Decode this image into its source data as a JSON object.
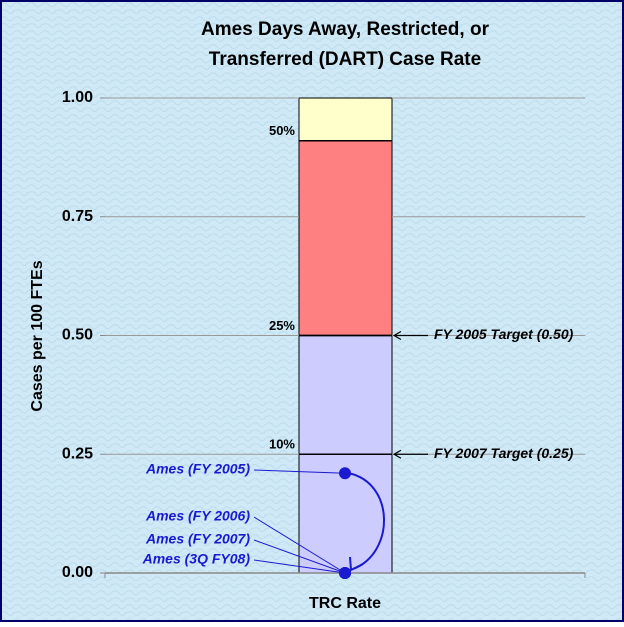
{
  "chart_data": {
    "type": "stacked-bar",
    "title": [
      "Ames Days Away, Restricted, or",
      "Transferred (DART) Case Rate"
    ],
    "ylabel": "Cases per 100 FTEs",
    "xlabel": "TRC Rate",
    "ylim": [
      0,
      1
    ],
    "yticks": [
      {
        "value": 0,
        "label": "0.00"
      },
      {
        "value": 0.25,
        "label": "0.25"
      },
      {
        "value": 0.5,
        "label": "0.50"
      },
      {
        "value": 0.75,
        "label": "0.75"
      },
      {
        "value": 1,
        "label": "1.00"
      }
    ],
    "grid": true,
    "segments": [
      {
        "color": "#ccccff",
        "value": 0.5
      },
      {
        "color": "#ff8080",
        "value": 0.41
      },
      {
        "color": "#ffffcc",
        "value": 0.09
      }
    ],
    "percentile_labels": [
      {
        "text": "10%",
        "y": 0.25
      },
      {
        "text": "25%",
        "y": 0.5
      },
      {
        "text": "50%",
        "y": 0.91
      }
    ],
    "targets": [
      {
        "text": "FY 2005 Target (0.50)",
        "y": 0.5
      },
      {
        "text": "FY 2007 Target (0.25)",
        "y": 0.25
      }
    ],
    "points_color": "#1a1ad0",
    "points": [
      {
        "label": "Ames (FY 2005)",
        "value": 0.21
      },
      {
        "label": "Ames (FY 2006)",
        "value": 0
      },
      {
        "label": "Ames (FY 2007)",
        "value": 0
      },
      {
        "label": "Ames (3Q FY08)",
        "value": 0
      }
    ]
  }
}
